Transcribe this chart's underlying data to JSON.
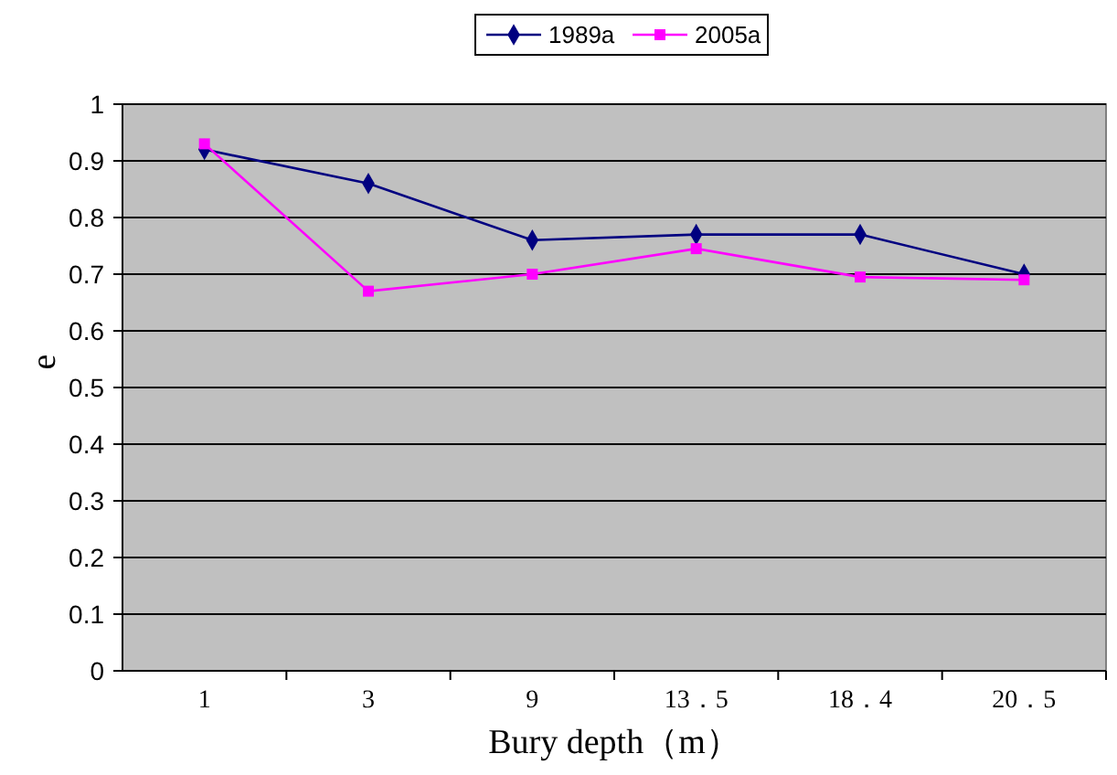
{
  "chart_data": {
    "type": "line",
    "xlabel": "Bury depth（m）",
    "ylabel": "e",
    "categories": [
      "1",
      "3",
      "9",
      "13．5",
      "18．4",
      "20．5"
    ],
    "series": [
      {
        "name": "1989a",
        "color": "#000080",
        "marker": "diamond",
        "values": [
          0.92,
          0.86,
          0.76,
          0.77,
          0.77,
          0.7
        ]
      },
      {
        "name": "2005a",
        "color": "#ff00ff",
        "marker": "square",
        "values": [
          0.93,
          0.67,
          0.7,
          0.745,
          0.695,
          0.69
        ]
      }
    ],
    "ylim": [
      0,
      1
    ],
    "yticks": [
      0,
      0.1,
      0.2,
      0.3,
      0.4,
      0.5,
      0.6,
      0.7,
      0.8,
      0.9,
      1
    ],
    "grid": "y",
    "legend": "top"
  }
}
